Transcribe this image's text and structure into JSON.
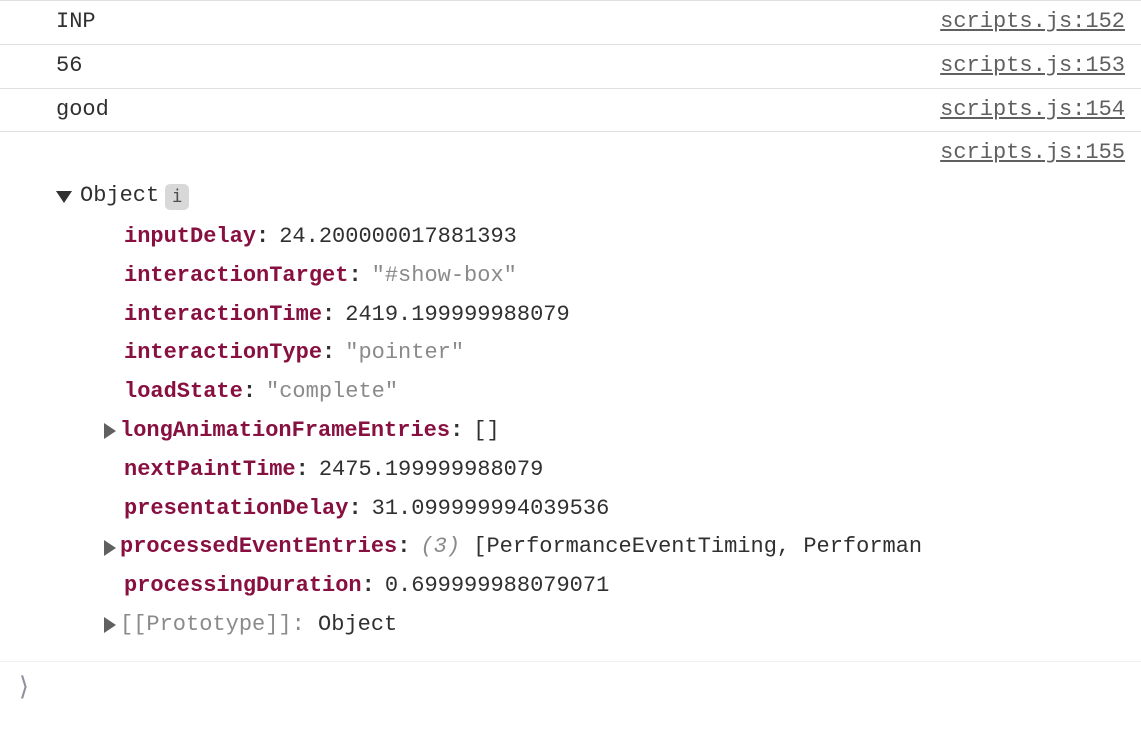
{
  "logRows": [
    {
      "message": "INP",
      "source": "scripts.js:152"
    },
    {
      "message": "56",
      "source": "scripts.js:153"
    },
    {
      "message": "good",
      "source": "scripts.js:154"
    }
  ],
  "objectLog": {
    "source": "scripts.js:155",
    "label": "Object",
    "properties": {
      "inputDelay": {
        "key": "inputDelay",
        "value": "24.200000017881393",
        "type": "number",
        "expandable": false
      },
      "interactionTarget": {
        "key": "interactionTarget",
        "value": "\"#show-box\"",
        "type": "string",
        "expandable": false
      },
      "interactionTime": {
        "key": "interactionTime",
        "value": "2419.199999988079",
        "type": "number",
        "expandable": false
      },
      "interactionType": {
        "key": "interactionType",
        "value": "\"pointer\"",
        "type": "string",
        "expandable": false
      },
      "loadState": {
        "key": "loadState",
        "value": "\"complete\"",
        "type": "string",
        "expandable": false
      },
      "longAnimationFrameEntries": {
        "key": "longAnimationFrameEntries",
        "value": "[]",
        "type": "plain",
        "expandable": true
      },
      "nextPaintTime": {
        "key": "nextPaintTime",
        "value": "2475.199999988079",
        "type": "number",
        "expandable": false
      },
      "presentationDelay": {
        "key": "presentationDelay",
        "value": "31.099999994039536",
        "type": "number",
        "expandable": false
      },
      "processedEventEntries": {
        "key": "processedEventEntries",
        "count": "(3)",
        "value": "[PerformanceEventTiming, Performan",
        "type": "array",
        "expandable": true
      },
      "processingDuration": {
        "key": "processingDuration",
        "value": "0.699999988079071",
        "type": "number",
        "expandable": false
      },
      "prototype": {
        "key": "[[Prototype]]",
        "value": "Object",
        "type": "prototype",
        "expandable": true
      }
    }
  },
  "colors": {
    "key": "#881041",
    "text": "#303030",
    "string": "#8a8a8a",
    "source": "#606060",
    "border": "#e0e0e0",
    "background": "#ffffff"
  }
}
